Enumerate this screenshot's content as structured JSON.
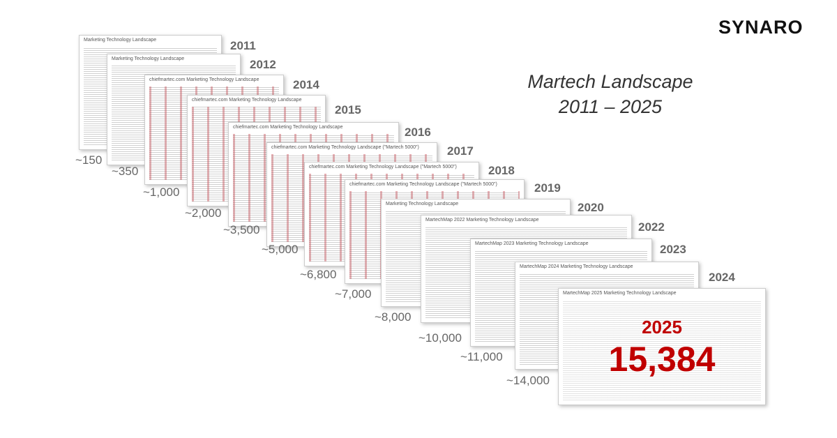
{
  "brand": "SYNARO",
  "title": {
    "line1": "Martech Landscape",
    "line2": "2011 – 2025"
  },
  "items": [
    {
      "year": "2011",
      "count": "~150",
      "heading": "Marketing Technology Landscape"
    },
    {
      "year": "2012",
      "count": "~350",
      "heading": "Marketing Technology Landscape"
    },
    {
      "year": "2014",
      "count": "~1,000",
      "heading": "chiefmartec.com Marketing Technology Landscape"
    },
    {
      "year": "2015",
      "count": "~2,000",
      "heading": "chiefmartec.com Marketing Technology Landscape"
    },
    {
      "year": "2016",
      "count": "~3,500",
      "heading": "chiefmartec.com Marketing Technology Landscape"
    },
    {
      "year": "2017",
      "count": "~5,000",
      "heading": "chiefmartec.com Marketing Technology Landscape (\"Martech 5000\")"
    },
    {
      "year": "2018",
      "count": "~6,800",
      "heading": "chiefmartec.com Marketing Technology Landscape (\"Martech 5000\")"
    },
    {
      "year": "2019",
      "count": "~7,000",
      "heading": "chiefmartec.com Marketing Technology Landscape (\"Martech 5000\")"
    },
    {
      "year": "2020",
      "count": "~8,000",
      "heading": "Marketing Technology Landscape"
    },
    {
      "year": "2022",
      "count": "~10,000",
      "heading": "MartechMap 2022 Marketing Technology Landscape"
    },
    {
      "year": "2023",
      "count": "~11,000",
      "heading": "MartechMap 2023 Marketing Technology Landscape"
    },
    {
      "year": "2024",
      "count": "~14,000",
      "heading": "MartechMap 2024 Marketing Technology Landscape"
    }
  ],
  "final": {
    "heading": "MartechMap 2025 Marketing Technology Landscape",
    "year": "2025",
    "count": "15,384"
  }
}
